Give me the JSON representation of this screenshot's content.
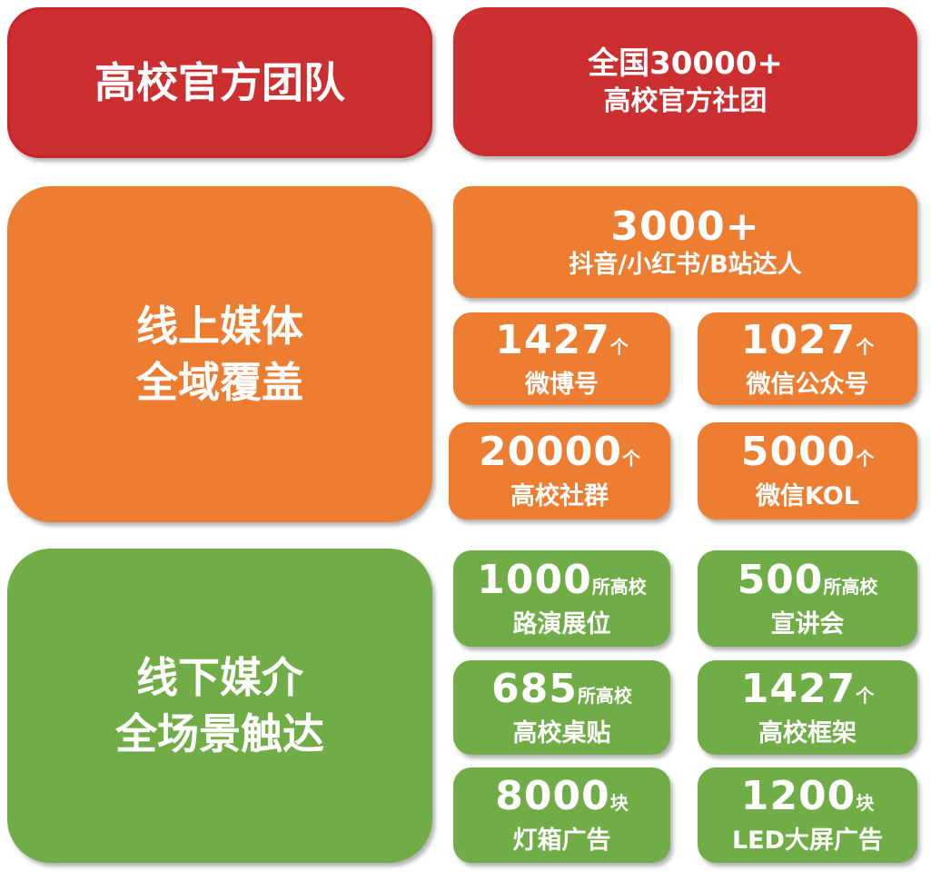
{
  "colors": {
    "red": "#cc2f2f",
    "orange": "#ed7d31",
    "green": "#70ad47"
  },
  "team": {
    "title": "高校官方团队",
    "stat_line1": "全国30000+",
    "stat_line2": "高校官方社团"
  },
  "online": {
    "title_line1": "线上媒体",
    "title_line2": "全域覆盖",
    "top": {
      "value": "3000+",
      "label": "抖音/小红书/B站达人"
    },
    "items": [
      {
        "value": "1427",
        "unit": "个",
        "label": "微博号"
      },
      {
        "value": "1027",
        "unit": "个",
        "label": "微信公众号"
      },
      {
        "value": "20000",
        "unit": "个",
        "label": "高校社群"
      },
      {
        "value": "5000",
        "unit": "个",
        "label": "微信KOL"
      }
    ]
  },
  "offline": {
    "title_line1": "线下媒介",
    "title_line2": "全场景触达",
    "items": [
      {
        "value": "1000",
        "unit": "所高校",
        "label": "路演展位"
      },
      {
        "value": "500",
        "unit": "所高校",
        "label": "宣讲会"
      },
      {
        "value": "685",
        "unit": "所高校",
        "label": "高校桌贴"
      },
      {
        "value": "1427",
        "unit": "个",
        "label": "高校框架"
      },
      {
        "value": "8000",
        "unit": "块",
        "label": "灯箱广告"
      },
      {
        "value": "1200",
        "unit": "块",
        "label": "LED大屏广告"
      }
    ]
  }
}
